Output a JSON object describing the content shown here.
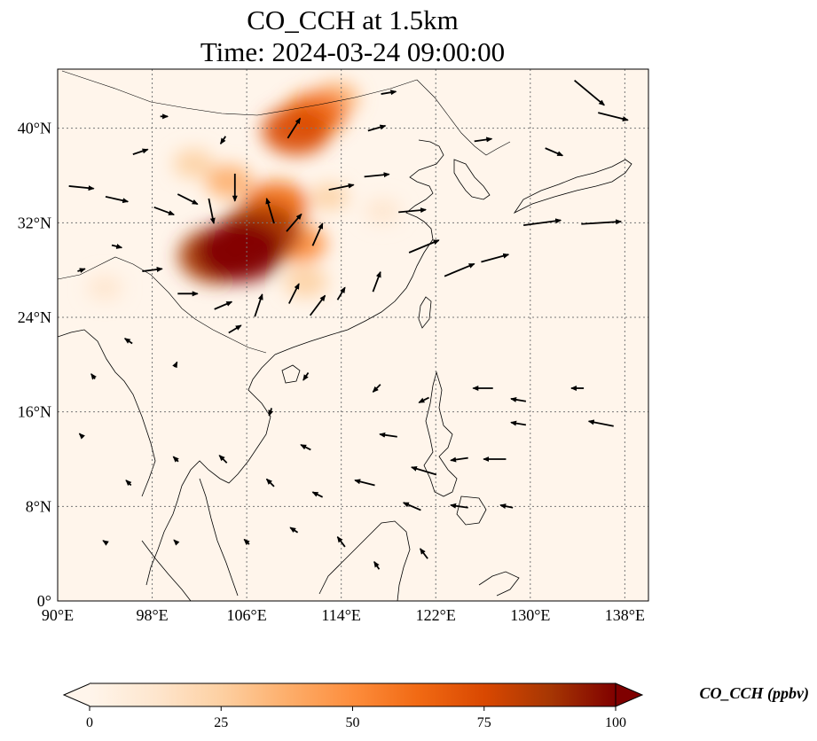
{
  "title_line1": "CO_CCH at 1.5km",
  "title_line2": "Time: 2024-03-24 09:00:00",
  "map": {
    "lon_range": [
      90,
      140
    ],
    "lat_range": [
      0,
      45
    ],
    "lon_ticks": [
      {
        "value": 90,
        "label": "90°E"
      },
      {
        "value": 98,
        "label": "98°E"
      },
      {
        "value": 106,
        "label": "106°E"
      },
      {
        "value": 114,
        "label": "114°E"
      },
      {
        "value": 122,
        "label": "122°E"
      },
      {
        "value": 130,
        "label": "130°E"
      },
      {
        "value": 138,
        "label": "138°E"
      }
    ],
    "lat_ticks": [
      {
        "value": 0,
        "label": "0°"
      },
      {
        "value": 8,
        "label": "8°N"
      },
      {
        "value": 16,
        "label": "16°N"
      },
      {
        "value": 24,
        "label": "24°N"
      },
      {
        "value": 32,
        "label": "32°N"
      },
      {
        "value": 40,
        "label": "40°N"
      }
    ],
    "gridlines": true,
    "background_color": "#fff5eb"
  },
  "colorbar": {
    "label": "CO_CCH (ppbv)",
    "min": 0,
    "max": 100,
    "extend": "both",
    "ticks": [
      {
        "value": 0,
        "label": "0"
      },
      {
        "value": 25,
        "label": "25"
      },
      {
        "value": 50,
        "label": "50"
      },
      {
        "value": 75,
        "label": "75"
      },
      {
        "value": 100,
        "label": "100"
      }
    ],
    "colormap": [
      "#fff5eb",
      "#fee6ce",
      "#fdd0a2",
      "#fdae6b",
      "#fd8d3c",
      "#f16913",
      "#d94801",
      "#a63603",
      "#7f0000"
    ]
  },
  "plumes": [
    {
      "lon": 105.5,
      "lat": 29.6,
      "value": 100
    },
    {
      "lon": 107.2,
      "lat": 31.2,
      "value": 90
    },
    {
      "lon": 103.5,
      "lat": 29.2,
      "value": 85
    },
    {
      "lon": 108.5,
      "lat": 33.5,
      "value": 65
    },
    {
      "lon": 110.5,
      "lat": 30.2,
      "value": 45
    },
    {
      "lon": 110.2,
      "lat": 39.8,
      "value": 70
    },
    {
      "lon": 111.8,
      "lat": 41.2,
      "value": 60
    },
    {
      "lon": 113.5,
      "lat": 42.5,
      "value": 35
    },
    {
      "lon": 104.5,
      "lat": 35.5,
      "value": 35
    },
    {
      "lon": 101.5,
      "lat": 37.0,
      "value": 25
    },
    {
      "lon": 113.0,
      "lat": 34.2,
      "value": 20
    },
    {
      "lon": 117.5,
      "lat": 33.0,
      "value": 18
    },
    {
      "lon": 94.0,
      "lat": 26.5,
      "value": 18
    },
    {
      "lon": 111.0,
      "lat": 27.0,
      "value": 30
    }
  ],
  "wind_vectors": [
    {
      "lon": 92,
      "lat": 35,
      "u": 2.0,
      "v": -0.2
    },
    {
      "lon": 95,
      "lat": 34,
      "u": 1.8,
      "v": -0.4
    },
    {
      "lon": 99,
      "lat": 33,
      "u": 1.6,
      "v": -0.6
    },
    {
      "lon": 101,
      "lat": 34,
      "u": 1.6,
      "v": -0.8
    },
    {
      "lon": 103,
      "lat": 33,
      "u": 0.4,
      "v": -2.0
    },
    {
      "lon": 105,
      "lat": 35,
      "u": 0.0,
      "v": -2.2
    },
    {
      "lon": 108,
      "lat": 33,
      "u": -0.6,
      "v": 2.0
    },
    {
      "lon": 110,
      "lat": 32,
      "u": 1.2,
      "v": 1.4
    },
    {
      "lon": 112,
      "lat": 31,
      "u": 0.8,
      "v": 1.8
    },
    {
      "lon": 114,
      "lat": 35,
      "u": 2.0,
      "v": 0.4
    },
    {
      "lon": 117,
      "lat": 36,
      "u": 2.0,
      "v": 0.2
    },
    {
      "lon": 120,
      "lat": 33,
      "u": 2.2,
      "v": 0.2
    },
    {
      "lon": 121,
      "lat": 30,
      "u": 2.4,
      "v": 1.0
    },
    {
      "lon": 124,
      "lat": 28,
      "u": 2.4,
      "v": 1.0
    },
    {
      "lon": 127,
      "lat": 29,
      "u": 2.2,
      "v": 0.6
    },
    {
      "lon": 131,
      "lat": 32,
      "u": 3.0,
      "v": 0.4
    },
    {
      "lon": 136,
      "lat": 32,
      "u": 3.2,
      "v": 0.2
    },
    {
      "lon": 135,
      "lat": 43,
      "u": 2.4,
      "v": -2.0
    },
    {
      "lon": 137,
      "lat": 41,
      "u": 2.4,
      "v": -0.6
    },
    {
      "lon": 132,
      "lat": 38,
      "u": 1.4,
      "v": -0.6
    },
    {
      "lon": 126,
      "lat": 39,
      "u": 1.4,
      "v": 0.2
    },
    {
      "lon": 98,
      "lat": 28,
      "u": 1.6,
      "v": 0.2
    },
    {
      "lon": 101,
      "lat": 26,
      "u": 1.6,
      "v": 0.0
    },
    {
      "lon": 104,
      "lat": 25,
      "u": 1.4,
      "v": 0.6
    },
    {
      "lon": 107,
      "lat": 25,
      "u": 0.6,
      "v": 1.8
    },
    {
      "lon": 110,
      "lat": 26,
      "u": 0.8,
      "v": 1.6
    },
    {
      "lon": 112,
      "lat": 25,
      "u": 1.2,
      "v": 1.6
    },
    {
      "lon": 114,
      "lat": 26,
      "u": 0.6,
      "v": 1.0
    },
    {
      "lon": 117,
      "lat": 27,
      "u": 0.6,
      "v": 1.6
    },
    {
      "lon": 105,
      "lat": 23,
      "u": 1.0,
      "v": 0.6
    },
    {
      "lon": 96,
      "lat": 22,
      "u": -0.6,
      "v": 0.4
    },
    {
      "lon": 100,
      "lat": 20,
      "u": 0.2,
      "v": 0.4
    },
    {
      "lon": 111,
      "lat": 19,
      "u": -0.4,
      "v": -0.6
    },
    {
      "lon": 117,
      "lat": 18,
      "u": -0.6,
      "v": -0.6
    },
    {
      "lon": 121,
      "lat": 17,
      "u": -0.8,
      "v": -0.4
    },
    {
      "lon": 126,
      "lat": 18,
      "u": -1.6,
      "v": 0.0
    },
    {
      "lon": 129,
      "lat": 17,
      "u": -1.2,
      "v": 0.2
    },
    {
      "lon": 134,
      "lat": 18,
      "u": -1.0,
      "v": 0.0
    },
    {
      "lon": 136,
      "lat": 15,
      "u": -2.0,
      "v": 0.4
    },
    {
      "lon": 129,
      "lat": 15,
      "u": -1.2,
      "v": 0.2
    },
    {
      "lon": 124,
      "lat": 12,
      "u": -1.4,
      "v": -0.2
    },
    {
      "lon": 121,
      "lat": 11,
      "u": -2.0,
      "v": 0.6
    },
    {
      "lon": 127,
      "lat": 12,
      "u": -1.8,
      "v": 0.0
    },
    {
      "lon": 118,
      "lat": 14,
      "u": -1.4,
      "v": 0.2
    },
    {
      "lon": 116,
      "lat": 10,
      "u": -1.6,
      "v": 0.4
    },
    {
      "lon": 120,
      "lat": 8,
      "u": -1.4,
      "v": 0.6
    },
    {
      "lon": 124,
      "lat": 8,
      "u": -1.4,
      "v": 0.2
    },
    {
      "lon": 128,
      "lat": 8,
      "u": -1.0,
      "v": 0.2
    },
    {
      "lon": 112,
      "lat": 9,
      "u": -0.8,
      "v": 0.4
    },
    {
      "lon": 108,
      "lat": 10,
      "u": -0.6,
      "v": 0.6
    },
    {
      "lon": 104,
      "lat": 12,
      "u": -0.6,
      "v": 0.6
    },
    {
      "lon": 100,
      "lat": 12,
      "u": -0.4,
      "v": 0.4
    },
    {
      "lon": 96,
      "lat": 10,
      "u": -0.4,
      "v": 0.4
    },
    {
      "lon": 110,
      "lat": 6,
      "u": -0.6,
      "v": 0.4
    },
    {
      "lon": 114,
      "lat": 5,
      "u": -0.6,
      "v": 0.8
    },
    {
      "lon": 117,
      "lat": 3,
      "u": -0.4,
      "v": 0.6
    },
    {
      "lon": 121,
      "lat": 4,
      "u": -0.6,
      "v": 0.8
    },
    {
      "lon": 106,
      "lat": 5,
      "u": -0.4,
      "v": 0.4
    },
    {
      "lon": 100,
      "lat": 5,
      "u": -0.3,
      "v": 0.3
    },
    {
      "lon": 94,
      "lat": 5,
      "u": -0.3,
      "v": 0.2
    },
    {
      "lon": 111,
      "lat": 13,
      "u": -0.8,
      "v": 0.4
    },
    {
      "lon": 108,
      "lat": 16,
      "u": -0.2,
      "v": -0.6
    },
    {
      "lon": 92,
      "lat": 14,
      "u": -0.3,
      "v": 0.3
    },
    {
      "lon": 93,
      "lat": 19,
      "u": -0.3,
      "v": 0.4
    },
    {
      "lon": 92,
      "lat": 28,
      "u": 0.6,
      "v": 0.2
    },
    {
      "lon": 95,
      "lat": 30,
      "u": 0.8,
      "v": -0.2
    },
    {
      "lon": 110,
      "lat": 40,
      "u": 1.0,
      "v": 1.6
    },
    {
      "lon": 117,
      "lat": 40,
      "u": 1.4,
      "v": 0.4
    },
    {
      "lon": 118,
      "lat": 43,
      "u": 1.2,
      "v": 0.2
    },
    {
      "lon": 104,
      "lat": 39,
      "u": -0.4,
      "v": -0.6
    },
    {
      "lon": 97,
      "lat": 38,
      "u": 1.2,
      "v": 0.4
    },
    {
      "lon": 99,
      "lat": 41,
      "u": 0.6,
      "v": 0.0
    }
  ]
}
